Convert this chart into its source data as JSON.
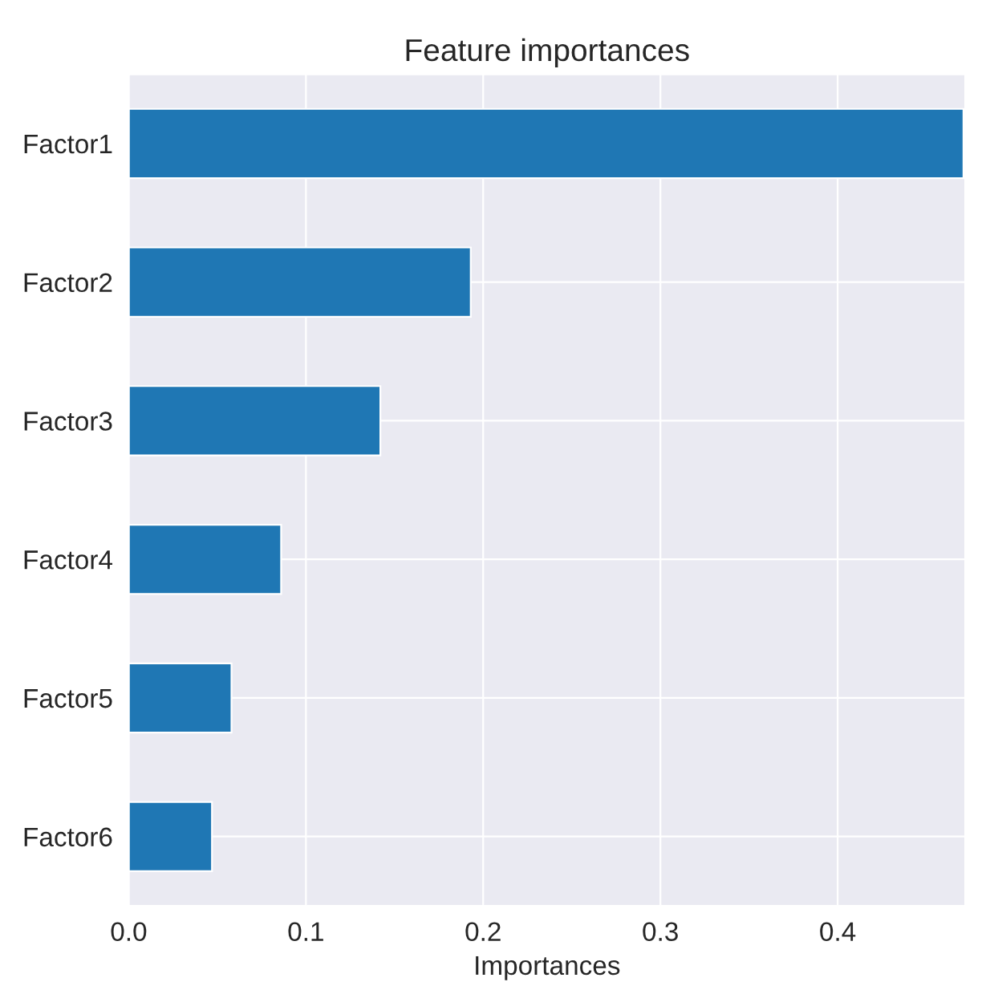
{
  "chart_data": {
    "type": "bar",
    "orientation": "horizontal",
    "title": "Feature importances",
    "xlabel": "Importances",
    "categories": [
      "Factor1",
      "Factor2",
      "Factor3",
      "Factor4",
      "Factor5",
      "Factor6"
    ],
    "values": [
      0.471,
      0.193,
      0.142,
      0.086,
      0.058,
      0.047
    ],
    "color": "#1f77b4",
    "xlim": [
      0,
      0.472
    ],
    "xticks": [
      {
        "value": 0,
        "label": "0.0"
      },
      0.1,
      0.2,
      0.3,
      0.4
    ],
    "grid": true
  }
}
